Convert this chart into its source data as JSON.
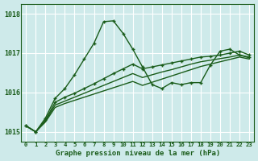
{
  "title": "Graphe pression niveau de la mer (hPa)",
  "background_color": "#ceeaea",
  "grid_color": "#ffffff",
  "line_color": "#1a5c1a",
  "x_labels": [
    "0",
    "1",
    "2",
    "3",
    "4",
    "5",
    "6",
    "7",
    "8",
    "9",
    "10",
    "11",
    "12",
    "13",
    "14",
    "15",
    "16",
    "17",
    "18",
    "19",
    "20",
    "21",
    "22",
    "23"
  ],
  "ylim": [
    1014.75,
    1018.25
  ],
  "yticks": [
    1015,
    1016,
    1017,
    1018
  ],
  "series1": [
    1015.15,
    1015.0,
    1015.35,
    1015.85,
    1016.1,
    1016.45,
    1016.85,
    1017.25,
    1017.8,
    1017.82,
    1017.5,
    1017.1,
    1016.65,
    1016.2,
    1016.1,
    1016.25,
    1016.2,
    1016.25,
    1016.25,
    1016.7,
    1017.05,
    1017.1,
    1016.95,
    1016.9
  ],
  "series2": [
    1015.15,
    1015.0,
    1015.3,
    1015.75,
    1015.88,
    1015.98,
    1016.1,
    1016.22,
    1016.35,
    1016.48,
    1016.6,
    1016.72,
    1016.6,
    1016.65,
    1016.7,
    1016.75,
    1016.8,
    1016.85,
    1016.9,
    1016.92,
    1016.95,
    1017.0,
    1017.05,
    1016.95
  ],
  "series3": [
    1015.15,
    1015.0,
    1015.28,
    1015.68,
    1015.78,
    1015.88,
    1015.98,
    1016.08,
    1016.18,
    1016.28,
    1016.38,
    1016.48,
    1016.38,
    1016.45,
    1016.52,
    1016.58,
    1016.65,
    1016.72,
    1016.78,
    1016.82,
    1016.86,
    1016.9,
    1016.95,
    1016.88
  ],
  "series4": [
    1015.15,
    1015.0,
    1015.25,
    1015.62,
    1015.72,
    1015.8,
    1015.88,
    1015.96,
    1016.04,
    1016.12,
    1016.2,
    1016.28,
    1016.18,
    1016.26,
    1016.34,
    1016.42,
    1016.5,
    1016.58,
    1016.66,
    1016.72,
    1016.78,
    1016.84,
    1016.9,
    1016.85
  ]
}
